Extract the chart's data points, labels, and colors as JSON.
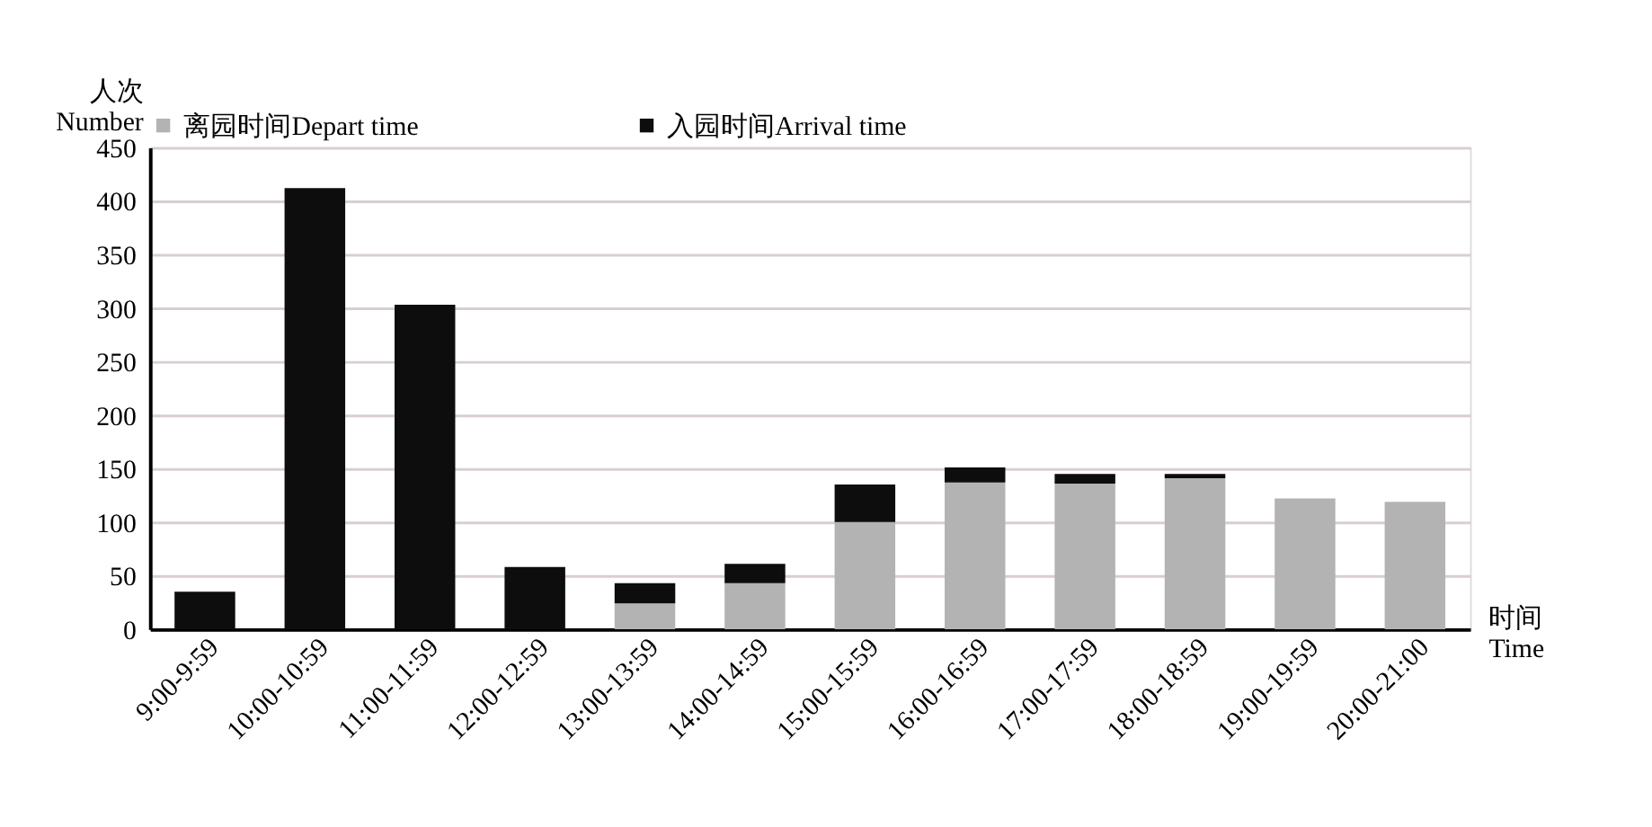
{
  "chart_data": {
    "type": "bar",
    "stacked": true,
    "xlabel": "时间\nTime",
    "ylabel": "人次\nNumber",
    "categories": [
      "9:00-9:59",
      "10:00-10:59",
      "11:00-11:59",
      "12:00-12:59",
      "13:00-13:59",
      "14:00-14:59",
      "15:00-15:59",
      "16:00-16:59",
      "17:00-17:59",
      "18:00-18:59",
      "19:00-19:59",
      "20:00-21:00"
    ],
    "series": [
      {
        "name": "离园时间Depart time",
        "color": "#b3b3b3",
        "values": [
          0,
          0,
          0,
          0,
          24,
          43,
          100,
          137,
          136,
          141,
          122,
          119
        ]
      },
      {
        "name": "入园时间Arrival time",
        "color": "#0d0d0d",
        "values": [
          35,
          412,
          303,
          58,
          19,
          18,
          35,
          14,
          9,
          4,
          0,
          0
        ]
      }
    ],
    "ylim": [
      0,
      450
    ],
    "yticks": [
      0,
      50,
      100,
      150,
      200,
      250,
      300,
      350,
      400,
      450
    ],
    "grid": "y",
    "legend": "top"
  }
}
